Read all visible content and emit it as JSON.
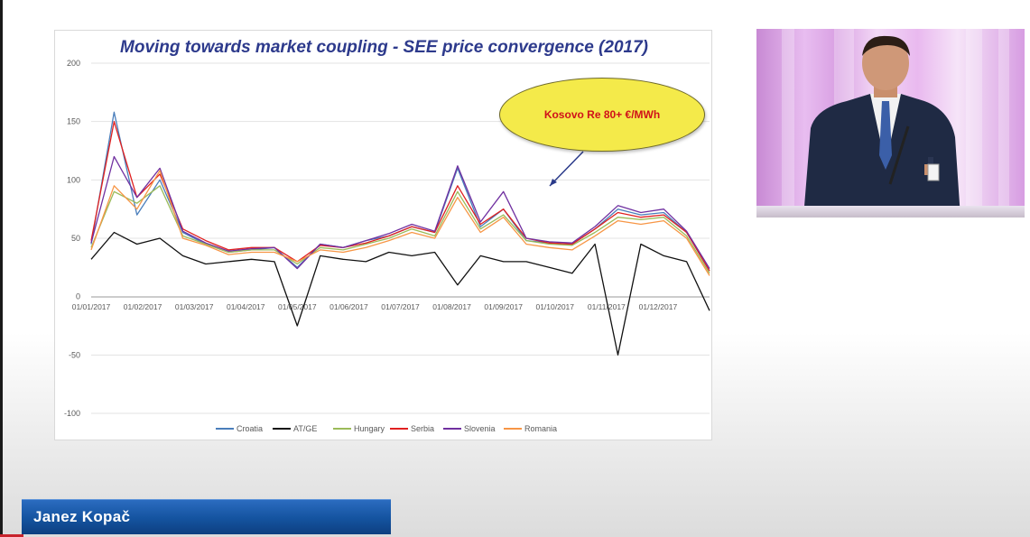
{
  "slide": {
    "title": "Moving towards market coupling - SEE price convergence (2017)",
    "callout": "Kosovo Re 80+ €/MWh"
  },
  "speaker": {
    "name": "Janez Kopač"
  },
  "colors": {
    "title": "#2d3a8c",
    "callout_fill": "#f4ea4a",
    "callout_text": "#d0111a",
    "banner": "#14539f"
  },
  "chart_data": {
    "type": "line",
    "title": "Moving towards market coupling - SEE price convergence (2017)",
    "xlabel": "",
    "ylabel": "",
    "ylim": [
      -100,
      200
    ],
    "yticks": [
      200,
      150,
      100,
      50,
      0,
      -50,
      -100
    ],
    "xticks": [
      "01/01/2017",
      "01/02/2017",
      "01/03/2017",
      "01/04/2017",
      "01/05/2017",
      "01/06/2017",
      "01/07/2017",
      "01/08/2017",
      "01/09/2017",
      "01/10/2017",
      "01/11/2017",
      "01/12/2017"
    ],
    "grid": "horizontal",
    "legend": "bottom",
    "annotation": "Kosovo Re 80+ €/MWh",
    "x_dates": [
      "01/01",
      "10/01",
      "20/01",
      "01/02",
      "15/02",
      "01/03",
      "15/03",
      "01/04",
      "15/04",
      "01/05",
      "15/05",
      "01/06",
      "15/06",
      "01/07",
      "15/07",
      "25/07",
      "01/08",
      "10/08",
      "20/08",
      "01/09",
      "15/09",
      "01/10",
      "15/10",
      "01/11",
      "15/11",
      "01/12",
      "15/12",
      "31/12"
    ],
    "series": [
      {
        "name": "Croatia",
        "color": "#4a7ebb",
        "values": [
          45,
          158,
          70,
          100,
          55,
          45,
          38,
          40,
          42,
          25,
          45,
          42,
          48,
          52,
          60,
          55,
          110,
          60,
          75,
          48,
          46,
          45,
          58,
          75,
          70,
          72,
          55,
          22
        ]
      },
      {
        "name": "AT/GE",
        "color": "#111111",
        "values": [
          32,
          55,
          45,
          50,
          35,
          28,
          30,
          32,
          30,
          -25,
          35,
          32,
          30,
          38,
          35,
          38,
          10,
          35,
          30,
          30,
          25,
          20,
          45,
          -50,
          45,
          35,
          30,
          -12
        ]
      },
      {
        "name": "Hungary",
        "color": "#9bbb59",
        "values": [
          42,
          90,
          80,
          95,
          52,
          45,
          38,
          40,
          40,
          28,
          42,
          40,
          45,
          50,
          58,
          52,
          90,
          58,
          70,
          48,
          45,
          44,
          55,
          68,
          66,
          68,
          52,
          20
        ]
      },
      {
        "name": "Serbia",
        "color": "#e02020",
        "values": [
          48,
          150,
          85,
          105,
          58,
          48,
          40,
          42,
          42,
          30,
          44,
          42,
          46,
          52,
          60,
          55,
          95,
          62,
          75,
          50,
          46,
          45,
          58,
          72,
          68,
          70,
          55,
          22
        ]
      },
      {
        "name": "Slovenia",
        "color": "#7030a0",
        "values": [
          46,
          120,
          85,
          110,
          56,
          46,
          39,
          41,
          42,
          24,
          45,
          42,
          48,
          54,
          62,
          56,
          112,
          64,
          90,
          50,
          47,
          46,
          60,
          78,
          72,
          75,
          56,
          24
        ]
      },
      {
        "name": "Romania",
        "color": "#f79646",
        "values": [
          40,
          95,
          75,
          108,
          50,
          44,
          36,
          38,
          38,
          30,
          40,
          38,
          42,
          48,
          55,
          50,
          85,
          55,
          68,
          45,
          42,
          40,
          52,
          65,
          62,
          65,
          50,
          18
        ]
      }
    ]
  }
}
